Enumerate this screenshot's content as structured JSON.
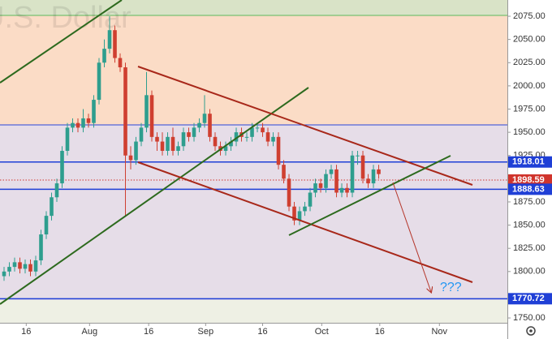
{
  "chart_data": {
    "type": "candlestick",
    "title": "U.S. Dollar",
    "annotation": "???",
    "up_color": "#2e9e8e",
    "down_color": "#cf3f30",
    "xlim": [
      -0.77,
      95.38
    ],
    "ylim": [
      1744.8,
      2092.5
    ],
    "xticks": [
      {
        "value": 4.2,
        "label": "16"
      },
      {
        "value": 16.2,
        "label": "Aug"
      },
      {
        "value": 27.4,
        "label": "16"
      },
      {
        "value": 38.2,
        "label": "Sep"
      },
      {
        "value": 49,
        "label": "16"
      },
      {
        "value": 60.2,
        "label": "Oct"
      },
      {
        "value": 71.2,
        "label": "16"
      },
      {
        "value": 82.5,
        "label": "Nov"
      }
    ],
    "yticks": [
      {
        "value": 1750,
        "label": "1750.00"
      },
      {
        "value": 1800,
        "label": "1800.00"
      },
      {
        "value": 1825,
        "label": "1825.00"
      },
      {
        "value": 1850,
        "label": "1850.00"
      },
      {
        "value": 1875,
        "label": "1875.00"
      },
      {
        "value": 1925,
        "label": "1925.00"
      },
      {
        "value": 1950,
        "label": "1950.00"
      },
      {
        "value": 1975,
        "label": "1975.00"
      },
      {
        "value": 2000,
        "label": "2000.00"
      },
      {
        "value": 2025,
        "label": "2025.00"
      },
      {
        "value": 2050,
        "label": "2050.00"
      },
      {
        "value": 2075,
        "label": "2075.00"
      }
    ],
    "price_lines": [
      {
        "value": 1918.01,
        "color": "#1f3fd6",
        "style": "solid"
      },
      {
        "value": 1898.59,
        "color": "#d0342c",
        "style": "dotted"
      },
      {
        "value": 1888.63,
        "color": "#1f3fd6",
        "style": "solid"
      },
      {
        "value": 1770.72,
        "color": "#1f3fd6",
        "style": "solid"
      }
    ],
    "open": [
      1795,
      1800,
      1805,
      1810,
      1803,
      1808,
      1800,
      1812,
      1840,
      1860,
      1880,
      1895,
      1930,
      1955,
      1960,
      1955,
      1965,
      1960,
      1985,
      2025,
      2040,
      2060,
      2030,
      2020,
      1925,
      1920,
      1940,
      1955,
      1990,
      1945,
      1940,
      1930,
      1945,
      1930,
      1935,
      1950,
      1945,
      1955,
      1960,
      1970,
      1945,
      1935,
      1930,
      1935,
      1940,
      1950,
      1945,
      1945,
      1955,
      1955,
      1950,
      1940,
      1945,
      1915,
      1900,
      1870,
      1855,
      1865,
      1870,
      1885,
      1895,
      1890,
      1905,
      1910,
      1885,
      1890,
      1885,
      1925,
      1925,
      1900,
      1895,
      1910
    ],
    "high": [
      1805,
      1810,
      1815,
      1815,
      1813,
      1813,
      1817,
      1845,
      1865,
      1885,
      1900,
      1935,
      1960,
      1965,
      1965,
      1975,
      1970,
      1990,
      2030,
      2050,
      2075,
      2065,
      2035,
      2025,
      1935,
      1945,
      1960,
      2015,
      1995,
      1950,
      1950,
      1950,
      1955,
      1940,
      1955,
      1955,
      1960,
      1965,
      1990,
      1975,
      1950,
      1940,
      1940,
      1945,
      1955,
      1955,
      1950,
      1960,
      1960,
      1960,
      1955,
      1950,
      1950,
      1920,
      1905,
      1875,
      1870,
      1875,
      1890,
      1900,
      1900,
      1910,
      1915,
      1915,
      1895,
      1895,
      1930,
      1930,
      1930,
      1905,
      1915,
      1915
    ],
    "low": [
      1790,
      1795,
      1800,
      1798,
      1798,
      1795,
      1795,
      1807,
      1835,
      1855,
      1875,
      1890,
      1925,
      1950,
      1950,
      1950,
      1955,
      1955,
      1980,
      2020,
      2035,
      2025,
      2015,
      1860,
      1910,
      1915,
      1935,
      1950,
      1940,
      1930,
      1925,
      1925,
      1925,
      1925,
      1930,
      1940,
      1940,
      1950,
      1955,
      1940,
      1930,
      1925,
      1925,
      1930,
      1935,
      1940,
      1940,
      1940,
      1950,
      1945,
      1935,
      1935,
      1910,
      1895,
      1865,
      1850,
      1850,
      1860,
      1865,
      1880,
      1885,
      1885,
      1900,
      1880,
      1880,
      1880,
      1880,
      1915,
      1895,
      1890,
      1890,
      1900
    ],
    "close": [
      1800,
      1805,
      1810,
      1803,
      1808,
      1800,
      1812,
      1840,
      1860,
      1880,
      1895,
      1930,
      1955,
      1960,
      1955,
      1965,
      1960,
      1985,
      2025,
      2040,
      2060,
      2030,
      2020,
      1925,
      1920,
      1940,
      1955,
      1990,
      1945,
      1940,
      1930,
      1945,
      1930,
      1935,
      1950,
      1945,
      1955,
      1960,
      1970,
      1945,
      1935,
      1930,
      1935,
      1940,
      1950,
      1945,
      1945,
      1955,
      1955,
      1950,
      1940,
      1945,
      1915,
      1900,
      1870,
      1855,
      1865,
      1870,
      1885,
      1895,
      1890,
      1905,
      1910,
      1885,
      1890,
      1885,
      1925,
      1925,
      1900,
      1895,
      1910,
      1905
    ]
  }
}
